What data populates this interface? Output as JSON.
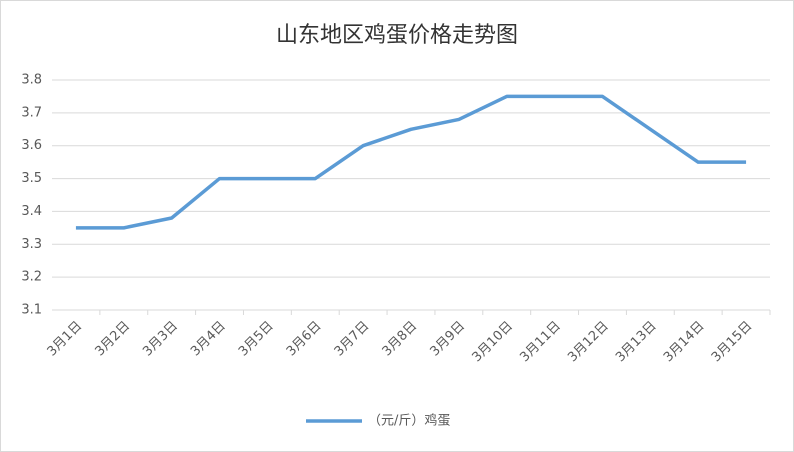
{
  "chart_data": {
    "type": "line",
    "title": "山东地区鸡蛋价格走势图",
    "categories": [
      "3月1日",
      "3月2日",
      "3月3日",
      "3月4日",
      "3月5日",
      "3月6日",
      "3月7日",
      "3月8日",
      "3月9日",
      "3月10日",
      "3月11日",
      "3月12日",
      "3月13日",
      "3月14日",
      "3月15日"
    ],
    "series": [
      {
        "name": "（元/斤）鸡蛋",
        "color": "#5b9bd5",
        "values": [
          3.35,
          3.35,
          3.38,
          3.5,
          3.5,
          3.5,
          3.6,
          3.65,
          3.68,
          3.75,
          3.75,
          3.75,
          3.65,
          3.55,
          3.55
        ]
      }
    ],
    "ylim": [
      3.1,
      3.8
    ],
    "yticks": [
      3.1,
      3.2,
      3.3,
      3.4,
      3.5,
      3.6,
      3.7,
      3.8
    ],
    "grid": true
  }
}
